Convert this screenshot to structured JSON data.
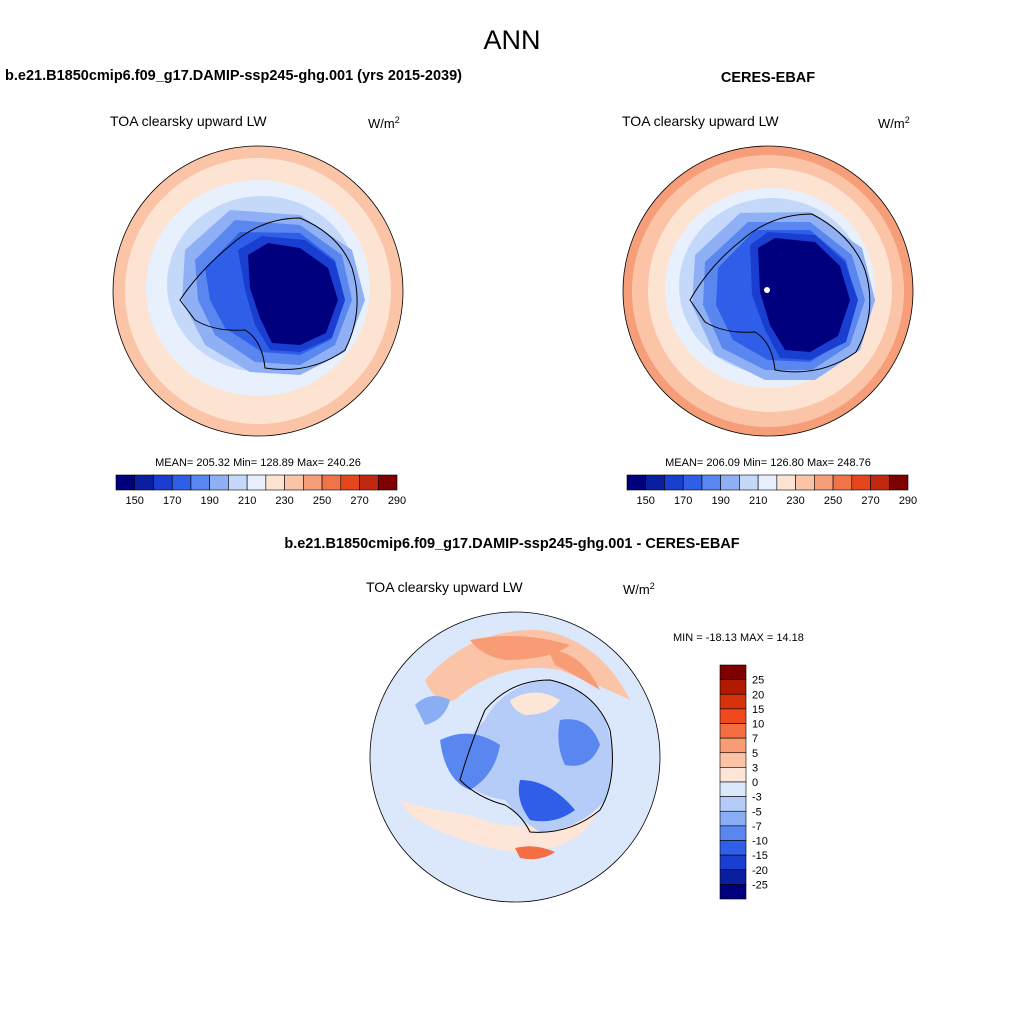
{
  "figure_title": "ANN",
  "panels": [
    {
      "heading": "b.e21.B1850cmip6.f09_g17.DAMIP-ssp245-ghg.001 (yrs 2015-2039)",
      "variable": "TOA clearsky upward LW",
      "units_base": "W/m",
      "units_exp": "2",
      "stats": "MEAN= 205.32  Min= 128.89  Max= 240.26",
      "colorbar_ticks": [
        "150",
        "170",
        "190",
        "210",
        "230",
        "250",
        "270",
        "290"
      ]
    },
    {
      "heading": "CERES-EBAF",
      "variable": "TOA clearsky upward LW",
      "units_base": "W/m",
      "units_exp": "2",
      "stats": "MEAN= 206.09  Min= 126.80  Max= 248.76",
      "colorbar_ticks": [
        "150",
        "170",
        "190",
        "210",
        "230",
        "250",
        "270",
        "290"
      ]
    },
    {
      "heading": "b.e21.B1850cmip6.f09_g17.DAMIP-ssp245-ghg.001 - CERES-EBAF",
      "variable": "TOA clearsky upward LW",
      "units_base": "W/m",
      "units_exp": "2",
      "stats": "MIN = -18.13 MAX =  14.18",
      "colorbar_ticks": [
        "25",
        "20",
        "15",
        "10",
        "7",
        "5",
        "3",
        "0",
        "-3",
        "-5",
        "-7",
        "-10",
        "-15",
        "-20",
        "-25"
      ]
    }
  ],
  "colors": {
    "abs_scale": [
      "#00007f",
      "#0a1fa0",
      "#1a3ed0",
      "#2f5fe8",
      "#5a86ef",
      "#8fb0f5",
      "#c4d8fa",
      "#e8f0fd",
      "#fde3d2",
      "#fbc4a6",
      "#f59e79",
      "#ef7447",
      "#e6461e",
      "#c02810",
      "#7f0000"
    ],
    "diff_scale": [
      "#7f0000",
      "#b01a00",
      "#d8320a",
      "#ef4a1e",
      "#f46d43",
      "#f89c76",
      "#fbc4a6",
      "#fde6d8",
      "#dbe7fb",
      "#b5ccf8",
      "#8aaef4",
      "#5a86ef",
      "#2f5fe8",
      "#1a3ed0",
      "#0a1fa0",
      "#00007f"
    ]
  }
}
